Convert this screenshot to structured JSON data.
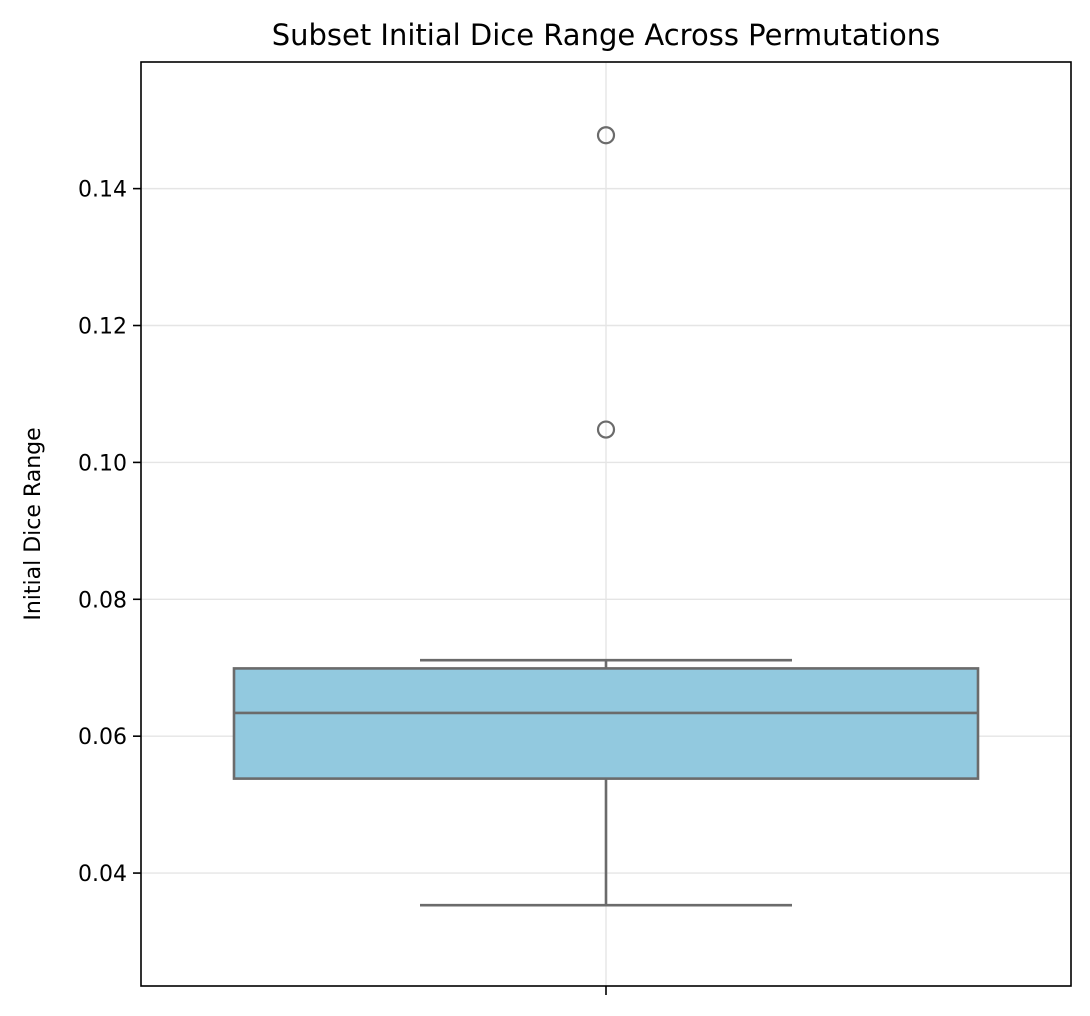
{
  "chart_data": {
    "type": "box",
    "title": "Subset Initial Dice Range Across Permutations",
    "xlabel": "",
    "ylabel": "Initial Dice Range",
    "ylim": [
      0.0235,
      0.1585
    ],
    "yticks": [
      0.04,
      0.06,
      0.08,
      0.1,
      0.12,
      0.14
    ],
    "ytick_labels": [
      "0.04",
      "0.06",
      "0.08",
      "0.10",
      "0.12",
      "0.14"
    ],
    "grid": true,
    "box": {
      "whisker_low": 0.0353,
      "q1": 0.0538,
      "median": 0.0634,
      "q3": 0.0699,
      "whisker_high": 0.0711,
      "outliers": [
        0.1048,
        0.1478
      ]
    },
    "colors": {
      "box_fill": "#92c9df",
      "box_edge": "#6b6b6b",
      "grid": "#e5e5e5"
    }
  }
}
